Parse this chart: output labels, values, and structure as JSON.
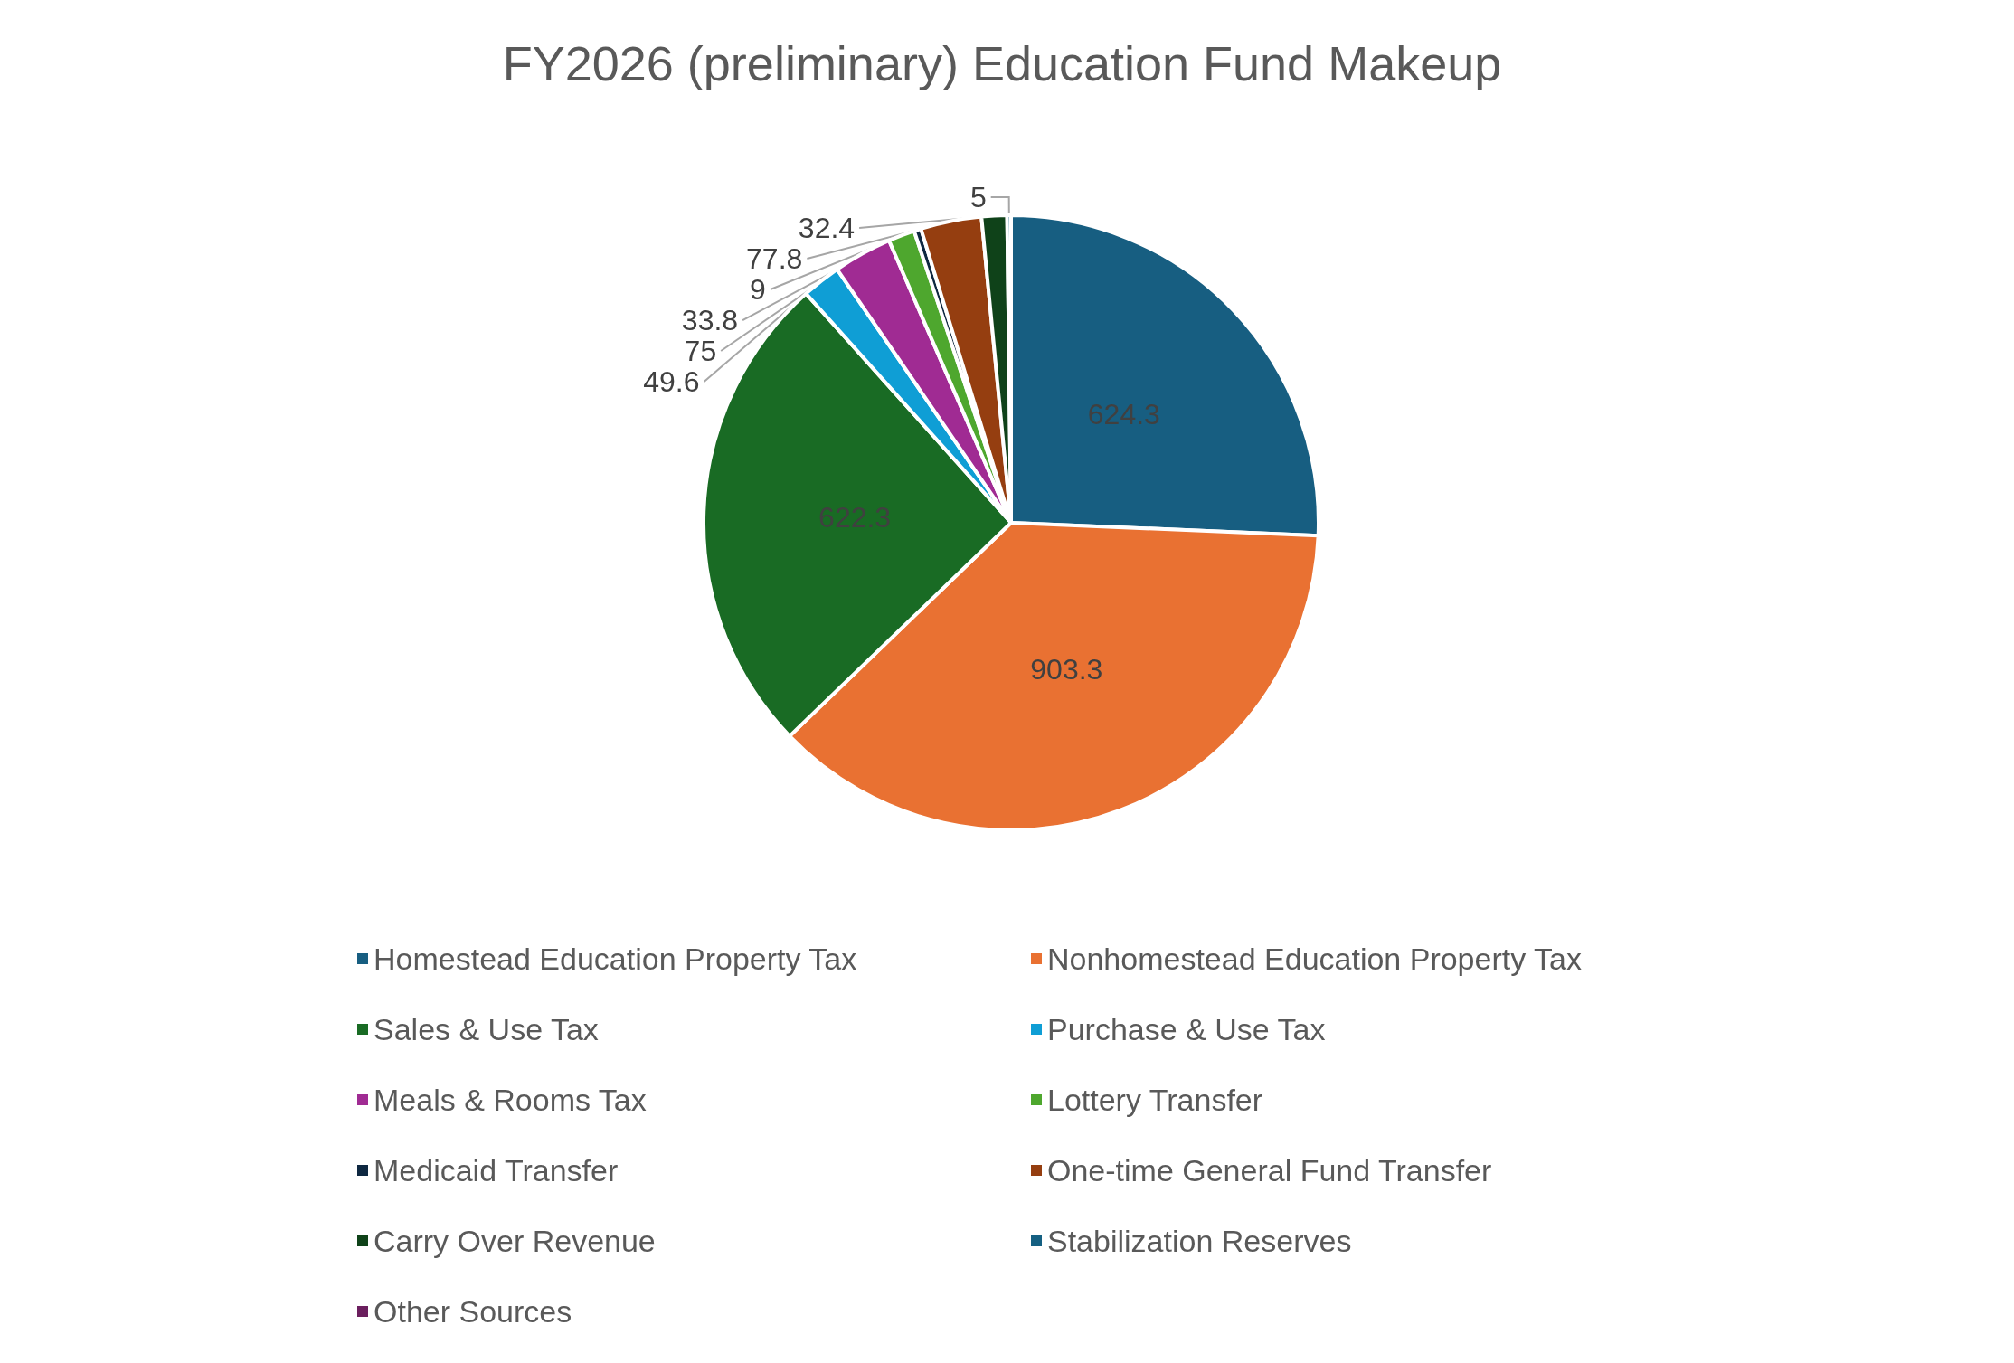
{
  "chart_data": {
    "type": "pie",
    "title": "FY2026 (preliminary) Education Fund Makeup",
    "categories": [
      "Homestead Education Property Tax",
      "Nonhomestead Education Property Tax",
      "Sales & Use Tax",
      "Purchase & Use Tax",
      "Meals & Rooms Tax",
      "Lottery Transfer",
      "Medicaid Transfer",
      "One-time General Fund Transfer",
      "Carry Over Revenue",
      "Stabilization Reserves",
      "Other Sources"
    ],
    "values": [
      624.3,
      903.3,
      622.3,
      49.6,
      75,
      33.8,
      9,
      77.8,
      32.4,
      5,
      null
    ],
    "colors": [
      "#175e81",
      "#e97132",
      "#196b24",
      "#0f9ed5",
      "#a02b93",
      "#4ea72e",
      "#0e2841",
      "#953e10",
      "#0f4219",
      "#156082",
      "#6b1f5e"
    ],
    "data_labels": true,
    "legend": "bottom"
  }
}
